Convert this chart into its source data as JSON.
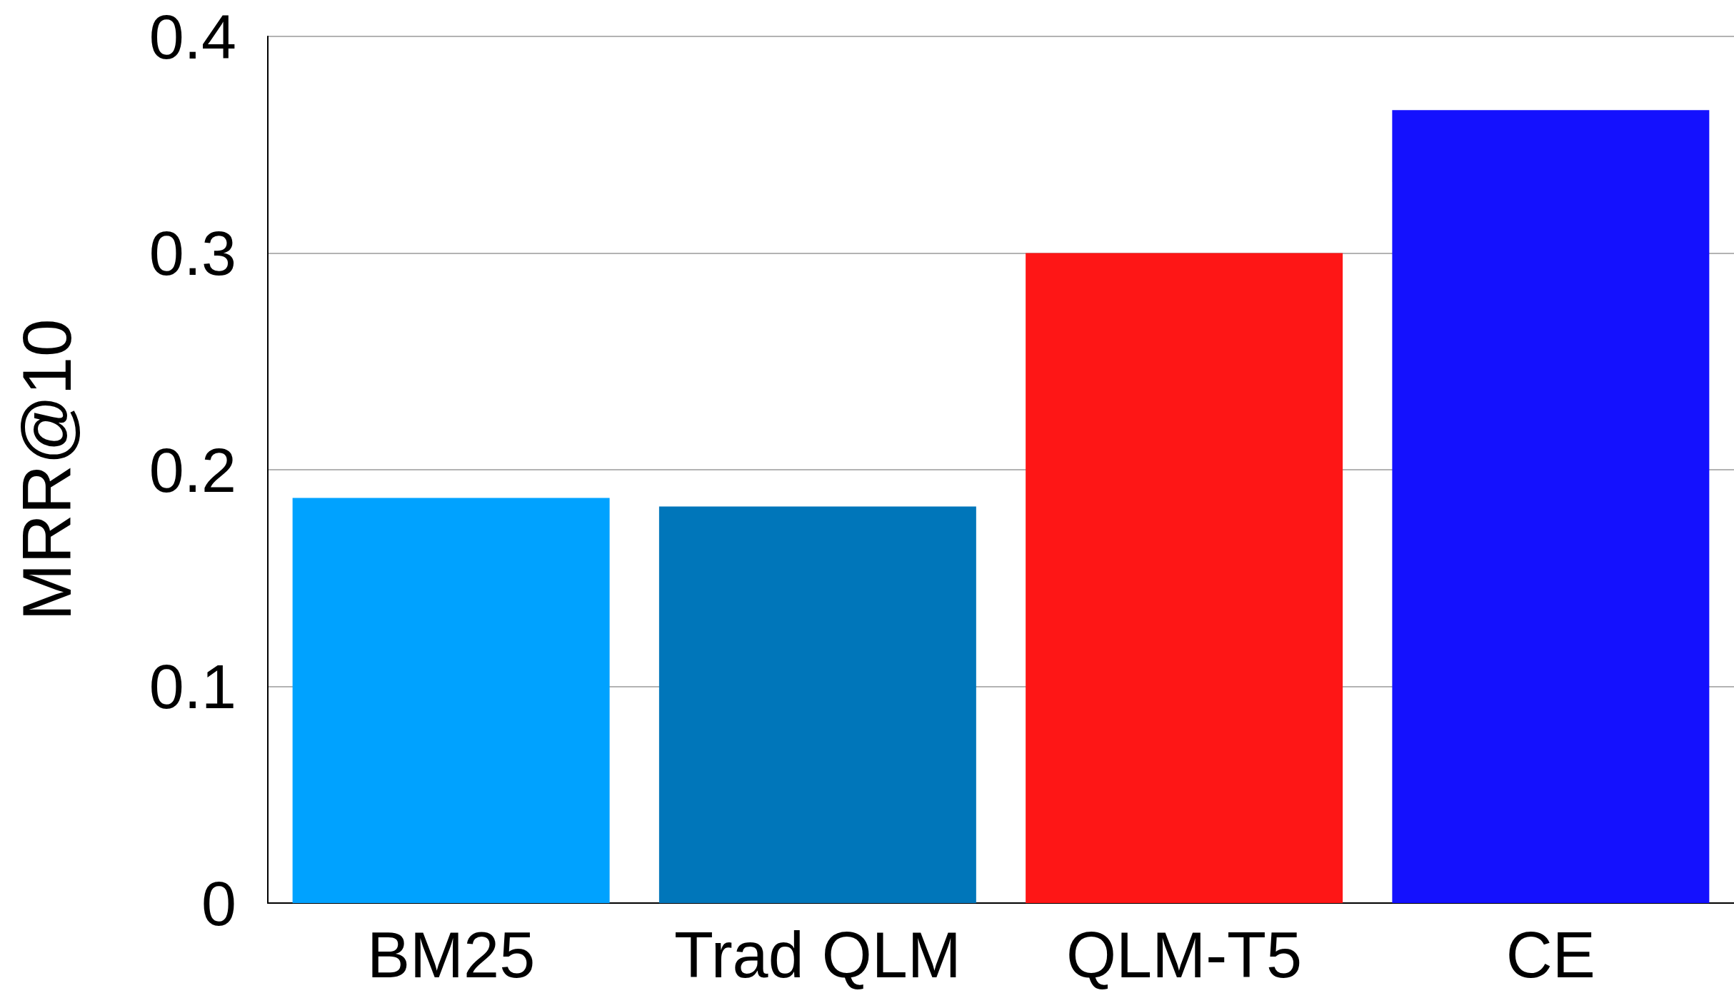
{
  "chart_data": {
    "type": "bar",
    "ylabel": "MRR@10",
    "categories": [
      "BM25",
      "Trad QLM",
      "QLM-T5",
      "CE"
    ],
    "values": [
      0.187,
      0.183,
      0.3,
      0.366
    ],
    "colors": [
      "#00a2ff",
      "#0076ba",
      "#fe1616",
      "#1411fe"
    ],
    "ylim": [
      0,
      0.4
    ],
    "yticks": [
      0,
      0.1,
      0.2,
      0.3,
      0.4
    ],
    "grid": "y"
  }
}
